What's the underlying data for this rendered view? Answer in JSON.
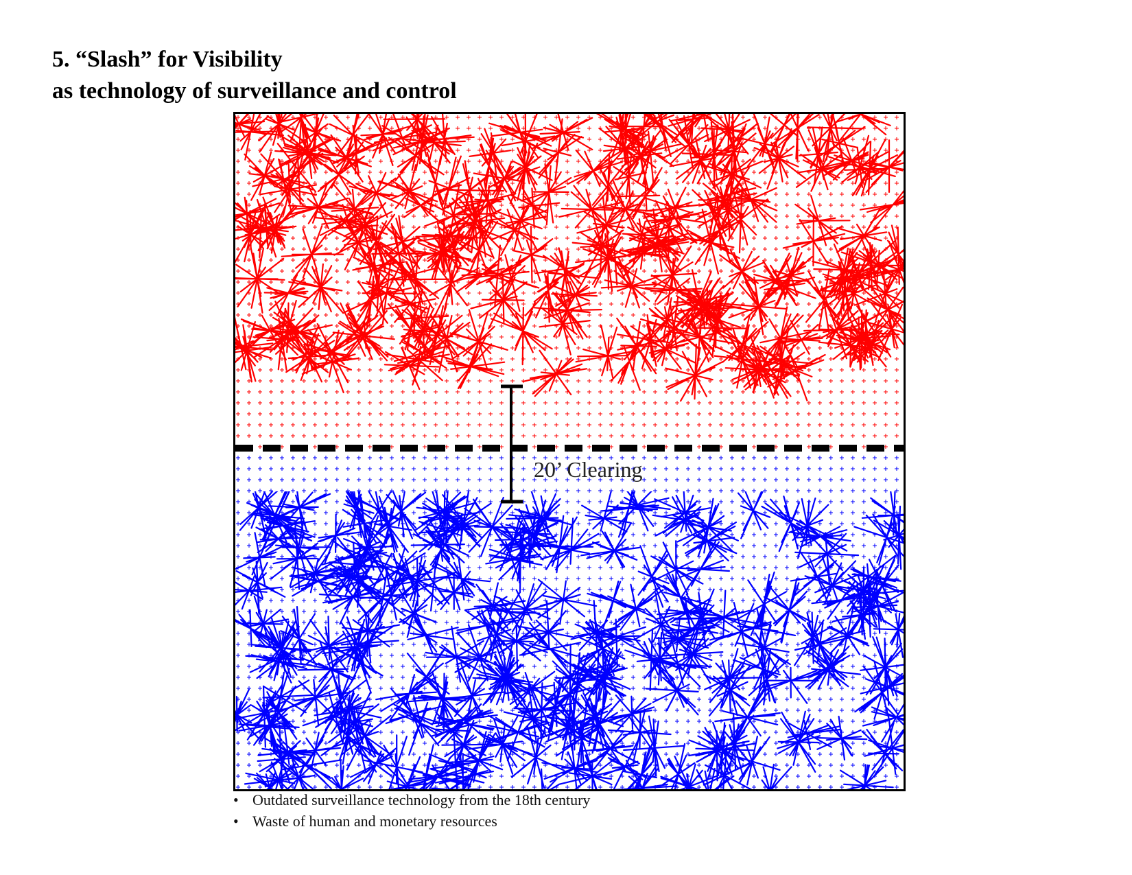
{
  "title": {
    "line1": "5. “Slash” for Visibility",
    "line2": "as technology of surveillance and control"
  },
  "diagram": {
    "top_zone_color": "#ff0000",
    "bottom_zone_color": "#0000ff",
    "clearing_label": "20’ Clearing"
  },
  "notes": [
    "Outdated surveillance technology from the 18th century",
    "Waste of human and monetary resources"
  ]
}
